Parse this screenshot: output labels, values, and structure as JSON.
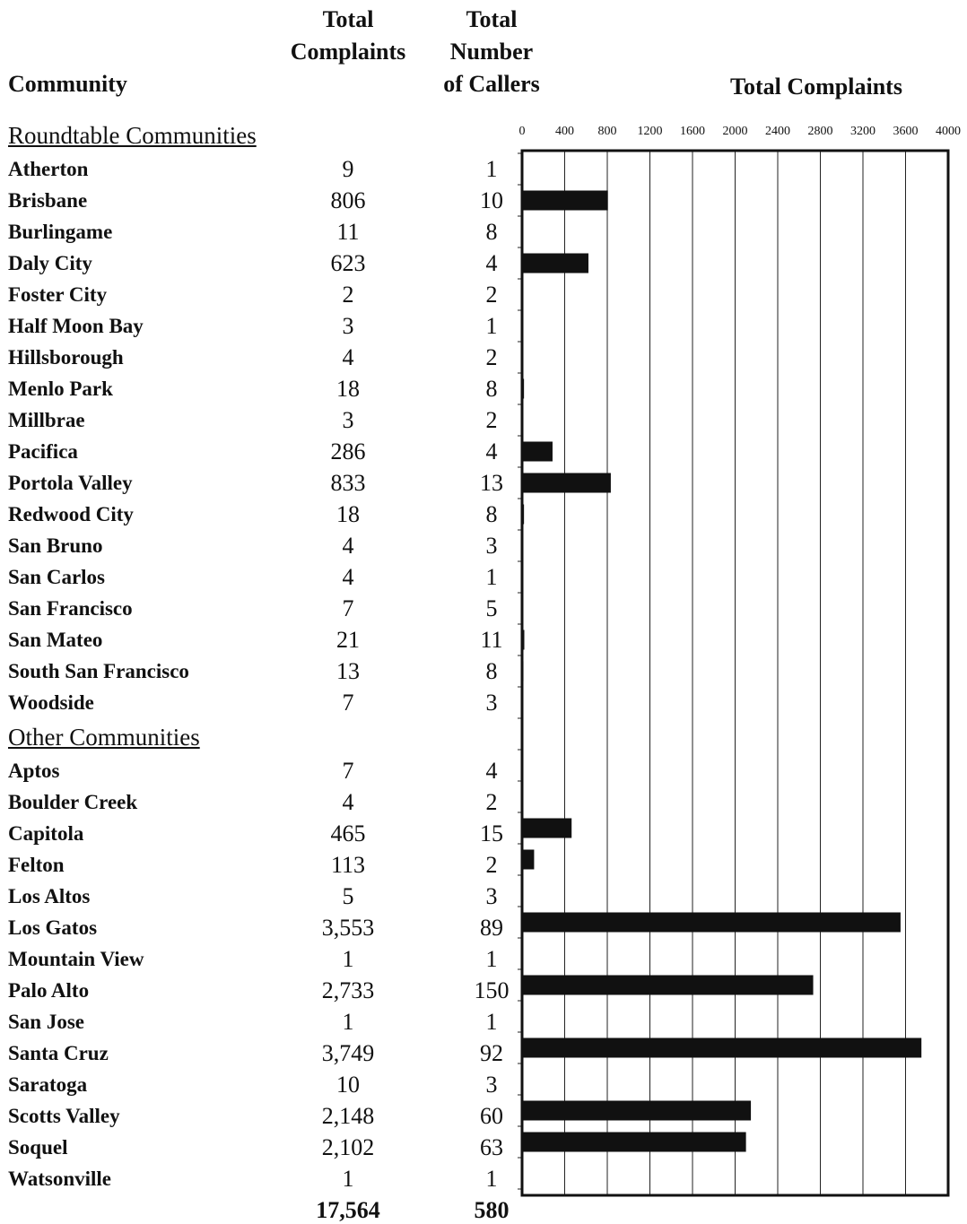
{
  "headers": {
    "community": "Community",
    "total_complaints_l1": "Total",
    "total_complaints_l2": "Complaints",
    "callers_l1": "Total",
    "callers_l2": "Number",
    "callers_l3": "of Callers",
    "chart_title": "Total Complaints"
  },
  "sections": {
    "roundtable": "Roundtable Communities",
    "other": "Other Communities"
  },
  "roundtable_rows": [
    {
      "name": "Atherton",
      "complaints": "9",
      "callers": "1"
    },
    {
      "name": "Brisbane",
      "complaints": "806",
      "callers": "10"
    },
    {
      "name": "Burlingame",
      "complaints": "11",
      "callers": "8"
    },
    {
      "name": "Daly City",
      "complaints": "623",
      "callers": "4"
    },
    {
      "name": "Foster City",
      "complaints": "2",
      "callers": "2"
    },
    {
      "name": "Half Moon Bay",
      "complaints": "3",
      "callers": "1"
    },
    {
      "name": "Hillsborough",
      "complaints": "4",
      "callers": "2"
    },
    {
      "name": "Menlo Park",
      "complaints": "18",
      "callers": "8"
    },
    {
      "name": "Millbrae",
      "complaints": "3",
      "callers": "2"
    },
    {
      "name": "Pacifica",
      "complaints": "286",
      "callers": "4"
    },
    {
      "name": "Portola Valley",
      "complaints": "833",
      "callers": "13"
    },
    {
      "name": "Redwood City",
      "complaints": "18",
      "callers": "8"
    },
    {
      "name": "San Bruno",
      "complaints": "4",
      "callers": "3"
    },
    {
      "name": "San Carlos",
      "complaints": "4",
      "callers": "1"
    },
    {
      "name": "San Francisco",
      "complaints": "7",
      "callers": "5"
    },
    {
      "name": "San Mateo",
      "complaints": "21",
      "callers": "11"
    },
    {
      "name": "South San Francisco",
      "complaints": "13",
      "callers": "8"
    },
    {
      "name": "Woodside",
      "complaints": "7",
      "callers": "3"
    }
  ],
  "other_rows": [
    {
      "name": "Aptos",
      "complaints": "7",
      "callers": "4"
    },
    {
      "name": "Boulder Creek",
      "complaints": "4",
      "callers": "2"
    },
    {
      "name": "Capitola",
      "complaints": "465",
      "callers": "15"
    },
    {
      "name": "Felton",
      "complaints": "113",
      "callers": "2"
    },
    {
      "name": "Los Altos",
      "complaints": "5",
      "callers": "3"
    },
    {
      "name": "Los Gatos",
      "complaints": "3,553",
      "callers": "89"
    },
    {
      "name": "Mountain View",
      "complaints": "1",
      "callers": "1"
    },
    {
      "name": "Palo Alto",
      "complaints": "2,733",
      "callers": "150"
    },
    {
      "name": "San Jose",
      "complaints": "1",
      "callers": "1"
    },
    {
      "name": "Santa Cruz",
      "complaints": "3,749",
      "callers": "92"
    },
    {
      "name": "Saratoga",
      "complaints": "10",
      "callers": "3"
    },
    {
      "name": "Scotts Valley",
      "complaints": "2,148",
      "callers": "60"
    },
    {
      "name": "Soquel",
      "complaints": "2,102",
      "callers": "63"
    },
    {
      "name": "Watsonville",
      "complaints": "1",
      "callers": "1"
    }
  ],
  "totals": {
    "complaints": "17,564",
    "callers": "580"
  },
  "chart_data": {
    "type": "bar",
    "orientation": "horizontal",
    "title": "Total Complaints",
    "xlim": [
      0,
      4000
    ],
    "ticks": [
      "0",
      "400",
      "800",
      "1200",
      "1600",
      "2000",
      "2400",
      "2800",
      "3200",
      "3600",
      "4000"
    ],
    "grid": true,
    "bar_color": "#111111",
    "categories": [
      "Atherton",
      "Brisbane",
      "Burlingame",
      "Daly City",
      "Foster City",
      "Half Moon Bay",
      "Hillsborough",
      "Menlo Park",
      "Millbrae",
      "Pacifica",
      "Portola Valley",
      "Redwood City",
      "San Bruno",
      "San Carlos",
      "San Francisco",
      "San Mateo",
      "South San Francisco",
      "Woodside",
      "",
      "Aptos",
      "Boulder Creek",
      "Capitola",
      "Felton",
      "Los Altos",
      "Los Gatos",
      "Mountain View",
      "Palo Alto",
      "San Jose",
      "Santa Cruz",
      "Saratoga",
      "Scotts Valley",
      "Soquel",
      "Watsonville"
    ],
    "values": [
      9,
      806,
      11,
      623,
      2,
      3,
      4,
      18,
      3,
      286,
      833,
      18,
      4,
      4,
      7,
      21,
      13,
      7,
      0,
      7,
      4,
      465,
      113,
      5,
      3553,
      1,
      2733,
      1,
      3749,
      10,
      2148,
      2102,
      1
    ]
  }
}
